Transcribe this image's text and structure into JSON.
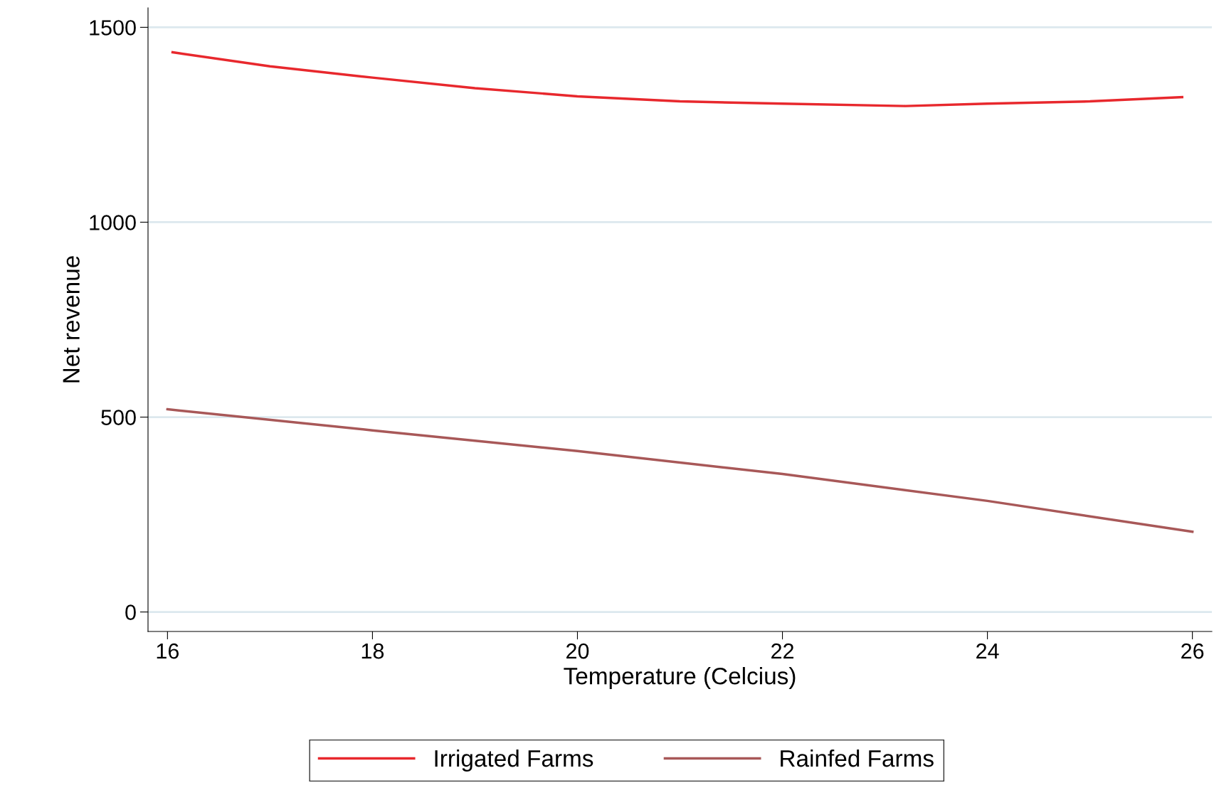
{
  "chart_data": {
    "type": "line",
    "xlabel": "Temperature (Celcius)",
    "ylabel": "Net revenue",
    "xlim": [
      15.81,
      26.19
    ],
    "xticks": [
      16,
      18,
      20,
      22,
      24,
      26
    ],
    "ylim": [
      -50,
      1550
    ],
    "yticks": [
      0,
      500,
      1000,
      1500
    ],
    "grid": "y",
    "legend": "bottom",
    "line_style": "solid",
    "marker": "none",
    "series": [
      {
        "name": "Irrigated Farms",
        "color": "#e8282d",
        "x": [
          16.05,
          17,
          18,
          19,
          20,
          21,
          22,
          23.2,
          24,
          25,
          25.9
        ],
        "values": [
          1436,
          1400,
          1371,
          1344,
          1323,
          1310,
          1304,
          1298,
          1304,
          1310,
          1321
        ]
      },
      {
        "name": "Rainfed Farms",
        "color": "#a85858",
        "x": [
          16,
          18,
          20,
          22,
          24,
          26
        ],
        "values": [
          520,
          466,
          413,
          354,
          285,
          206
        ]
      }
    ]
  }
}
